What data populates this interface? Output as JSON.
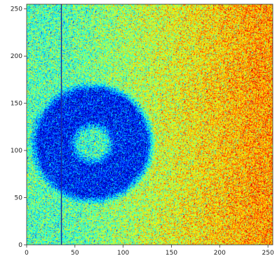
{
  "chart_data": {
    "type": "heatmap",
    "title": "",
    "xlabel": "",
    "ylabel": "",
    "xlim": [
      0,
      255
    ],
    "ylim": [
      0,
      255
    ],
    "x_ticks": [
      0,
      50,
      100,
      150,
      200,
      250
    ],
    "y_ticks": [
      0,
      50,
      100,
      150,
      200,
      250
    ],
    "x_tick_labels": [
      "0",
      "50",
      "100",
      "150",
      "200",
      "250"
    ],
    "y_tick_labels": [
      "0",
      "50",
      "100",
      "150",
      "200",
      "250"
    ],
    "colormap": "jet",
    "grid": false,
    "legend": "none",
    "features": {
      "ring": {
        "center_x": 68,
        "center_y": 108,
        "inner_radius": 24,
        "outer_radius": 60,
        "level": 0.15
      },
      "ring_core_level": 0.42,
      "background_level_left": 0.45,
      "background_level_right": 0.72,
      "vertical_line_x": 36,
      "vertical_line_color": "#1a2a9a"
    }
  }
}
